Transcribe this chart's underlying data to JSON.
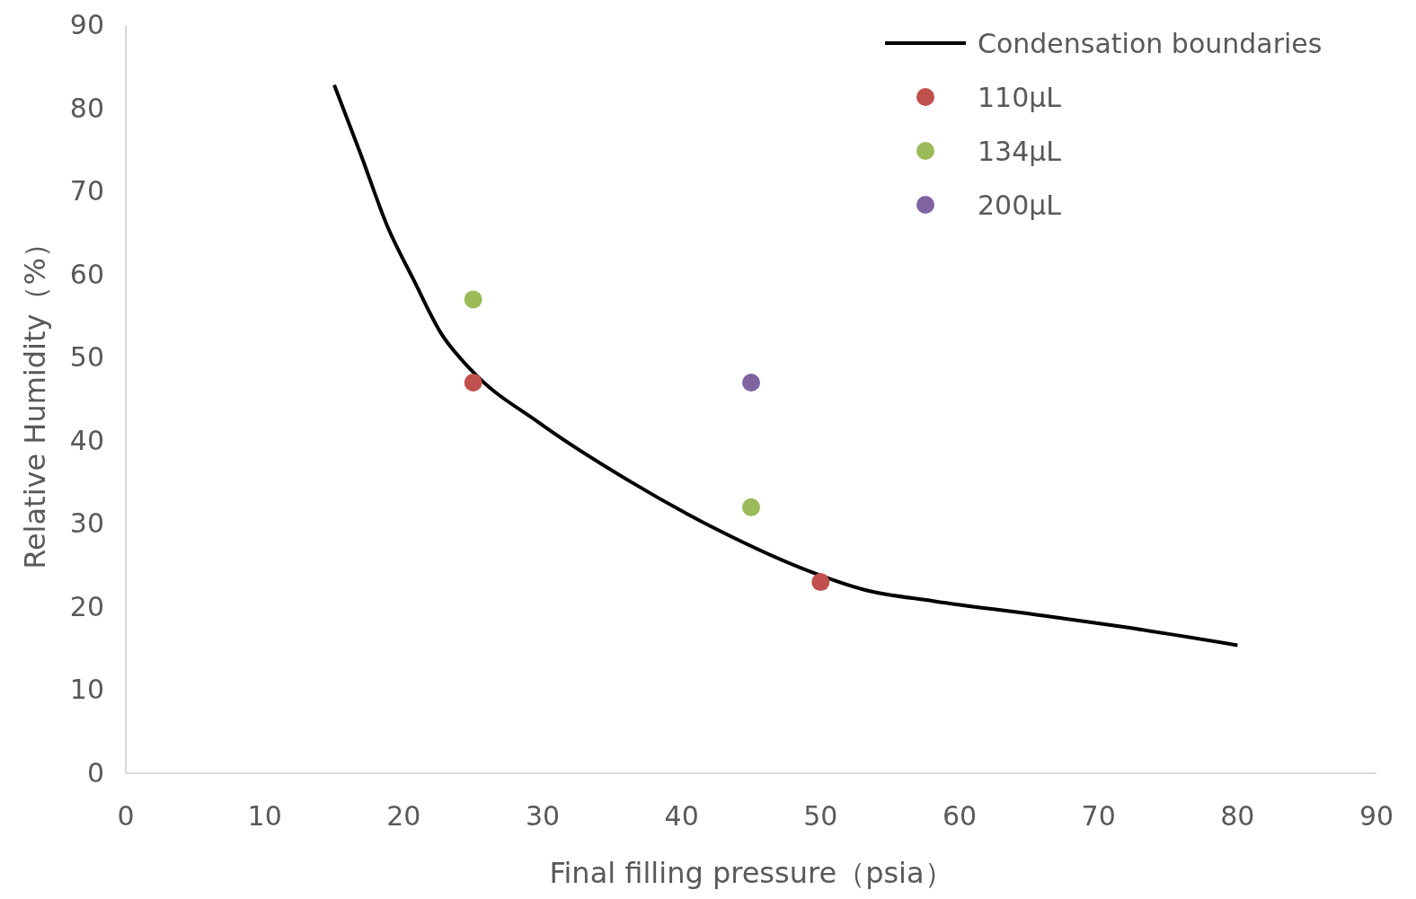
{
  "chart_data": {
    "type": "scatter",
    "xlabel": "Final filling pressure（psia）",
    "ylabel": "Relative Humidity（%）",
    "xlim": [
      0,
      90
    ],
    "xticks": [
      0,
      10,
      20,
      30,
      40,
      50,
      60,
      70,
      80,
      90
    ],
    "ylim": [
      0,
      90
    ],
    "yticks": [
      0,
      10,
      20,
      30,
      40,
      50,
      60,
      70,
      80,
      90
    ],
    "grid": false,
    "legend": "top right",
    "marker": "circle",
    "series": [
      {
        "name": "Condensation boundaries",
        "type": "line",
        "marker": "none",
        "color": "#000000",
        "x": [
          15,
          16.9,
          18.8,
          20.7,
          22.7,
          24.8,
          29.8,
          36.3,
          42.7,
          49.2,
          53.1,
          58.2,
          65.4,
          71.8,
          80
        ],
        "values": [
          82.8,
          74.5,
          65.9,
          59.4,
          52.9,
          48.6,
          42.1,
          35.1,
          29.2,
          24.3,
          22.1,
          20.7,
          19.1,
          17.6,
          15.4
        ]
      },
      {
        "name": "110μL",
        "color": "#c0504d",
        "x": [
          25,
          50
        ],
        "values": [
          47,
          23
        ]
      },
      {
        "name": "134μL",
        "color": "#9bbb59",
        "x": [
          25,
          45
        ],
        "values": [
          57,
          32
        ]
      },
      {
        "name": "200μL",
        "color": "#8064a2",
        "x": [
          45
        ],
        "values": [
          47
        ]
      }
    ]
  }
}
